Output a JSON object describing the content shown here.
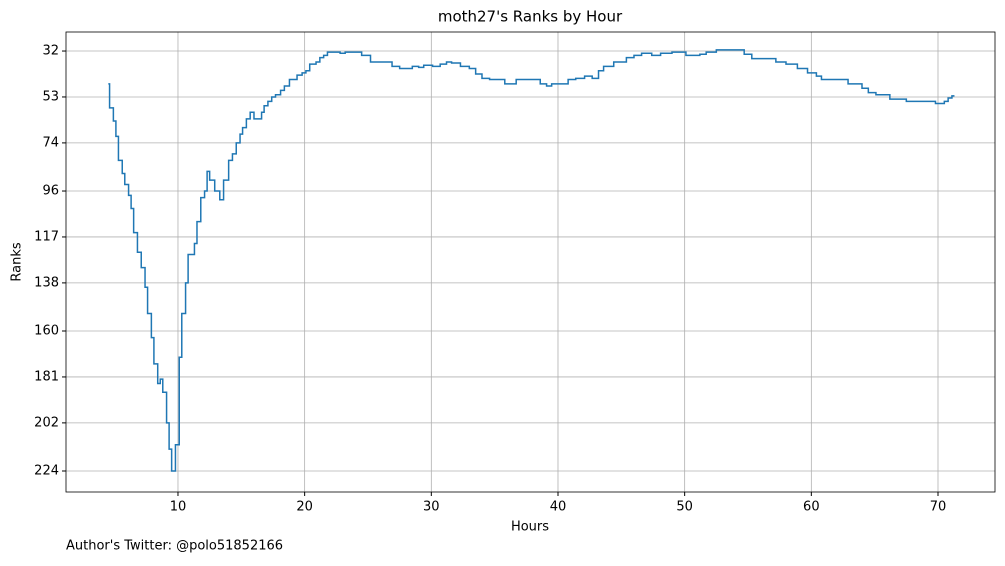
{
  "chart_data": {
    "type": "line",
    "step": "post",
    "title": "moth27's Ranks by Hour",
    "xlabel": "Hours",
    "ylabel": "Ranks",
    "footer": "Author's Twitter: @polo51852166",
    "x": [
      4.5,
      4.6,
      4.9,
      5.1,
      5.3,
      5.6,
      5.8,
      6.1,
      6.3,
      6.5,
      6.8,
      7.1,
      7.4,
      7.6,
      7.9,
      8.1,
      8.4,
      8.6,
      8.8,
      9.1,
      9.3,
      9.5,
      9.8,
      10.1,
      10.3,
      10.6,
      10.8,
      11.3,
      11.5,
      11.8,
      12.1,
      12.3,
      12.5,
      12.9,
      13.3,
      13.6,
      14.0,
      14.3,
      14.6,
      14.9,
      15.1,
      15.4,
      15.7,
      16.0,
      16.6,
      16.8,
      17.1,
      17.4,
      17.7,
      18.1,
      18.4,
      18.8,
      19.4,
      19.8,
      20.1,
      20.4,
      20.9,
      21.2,
      21.5,
      21.8,
      22.8,
      23.2,
      24.5,
      25.2,
      26.9,
      27.5,
      28.5,
      29.0,
      29.4,
      30.1,
      30.7,
      31.2,
      31.6,
      32.3,
      33.0,
      33.5,
      34.0,
      34.6,
      35.8,
      36.7,
      38.6,
      39.1,
      39.5,
      40.8,
      41.4,
      42.1,
      42.7,
      43.2,
      43.6,
      44.4,
      45.4,
      46.0,
      46.6,
      47.4,
      48.1,
      49.0,
      50.1,
      51.2,
      51.7,
      52.5,
      54.7,
      55.3,
      57.2,
      58.0,
      58.9,
      59.7,
      60.4,
      60.8,
      62.9,
      64.0,
      64.5,
      65.1,
      66.2,
      67.5,
      69.8,
      70.5,
      70.8,
      71.1,
      71.3
    ],
    "series": [
      {
        "name": "Ranks",
        "color": "#1f77b4",
        "values": [
          47,
          58,
          64,
          71,
          82,
          88,
          93,
          98,
          104,
          115,
          124,
          131,
          140,
          152,
          163,
          175,
          184,
          182,
          188,
          202,
          214,
          224,
          212,
          172,
          152,
          138,
          125,
          120,
          110,
          99,
          96,
          87,
          91,
          96,
          100,
          91,
          82,
          79,
          74,
          70,
          67,
          63,
          60,
          63,
          60,
          57,
          55,
          53,
          52,
          50,
          48,
          45,
          43,
          42,
          41,
          38,
          37,
          35,
          34,
          32.5,
          33,
          32.5,
          34,
          37,
          39,
          40,
          39,
          39.5,
          38.5,
          39,
          38,
          37,
          37.5,
          39,
          40,
          42.5,
          44.5,
          45,
          47,
          45,
          47,
          48,
          47,
          45,
          44.5,
          43.5,
          44.5,
          41,
          39,
          37,
          35,
          34,
          33,
          34,
          33,
          32.5,
          34,
          33.5,
          32.5,
          31.5,
          33.5,
          35.5,
          37,
          38,
          40,
          42,
          43.5,
          45,
          47,
          49,
          51,
          52,
          54,
          55,
          56,
          55,
          53.5,
          52.5,
          52.5
        ]
      }
    ],
    "xlim": [
      1.16,
      74.5
    ],
    "ylim": [
      233.6,
      23.3
    ],
    "xticks": [
      10,
      20,
      30,
      40,
      50,
      60,
      70
    ],
    "yticks": [
      32,
      53,
      74,
      96,
      117,
      138,
      160,
      181,
      202,
      224
    ],
    "grid": true
  }
}
